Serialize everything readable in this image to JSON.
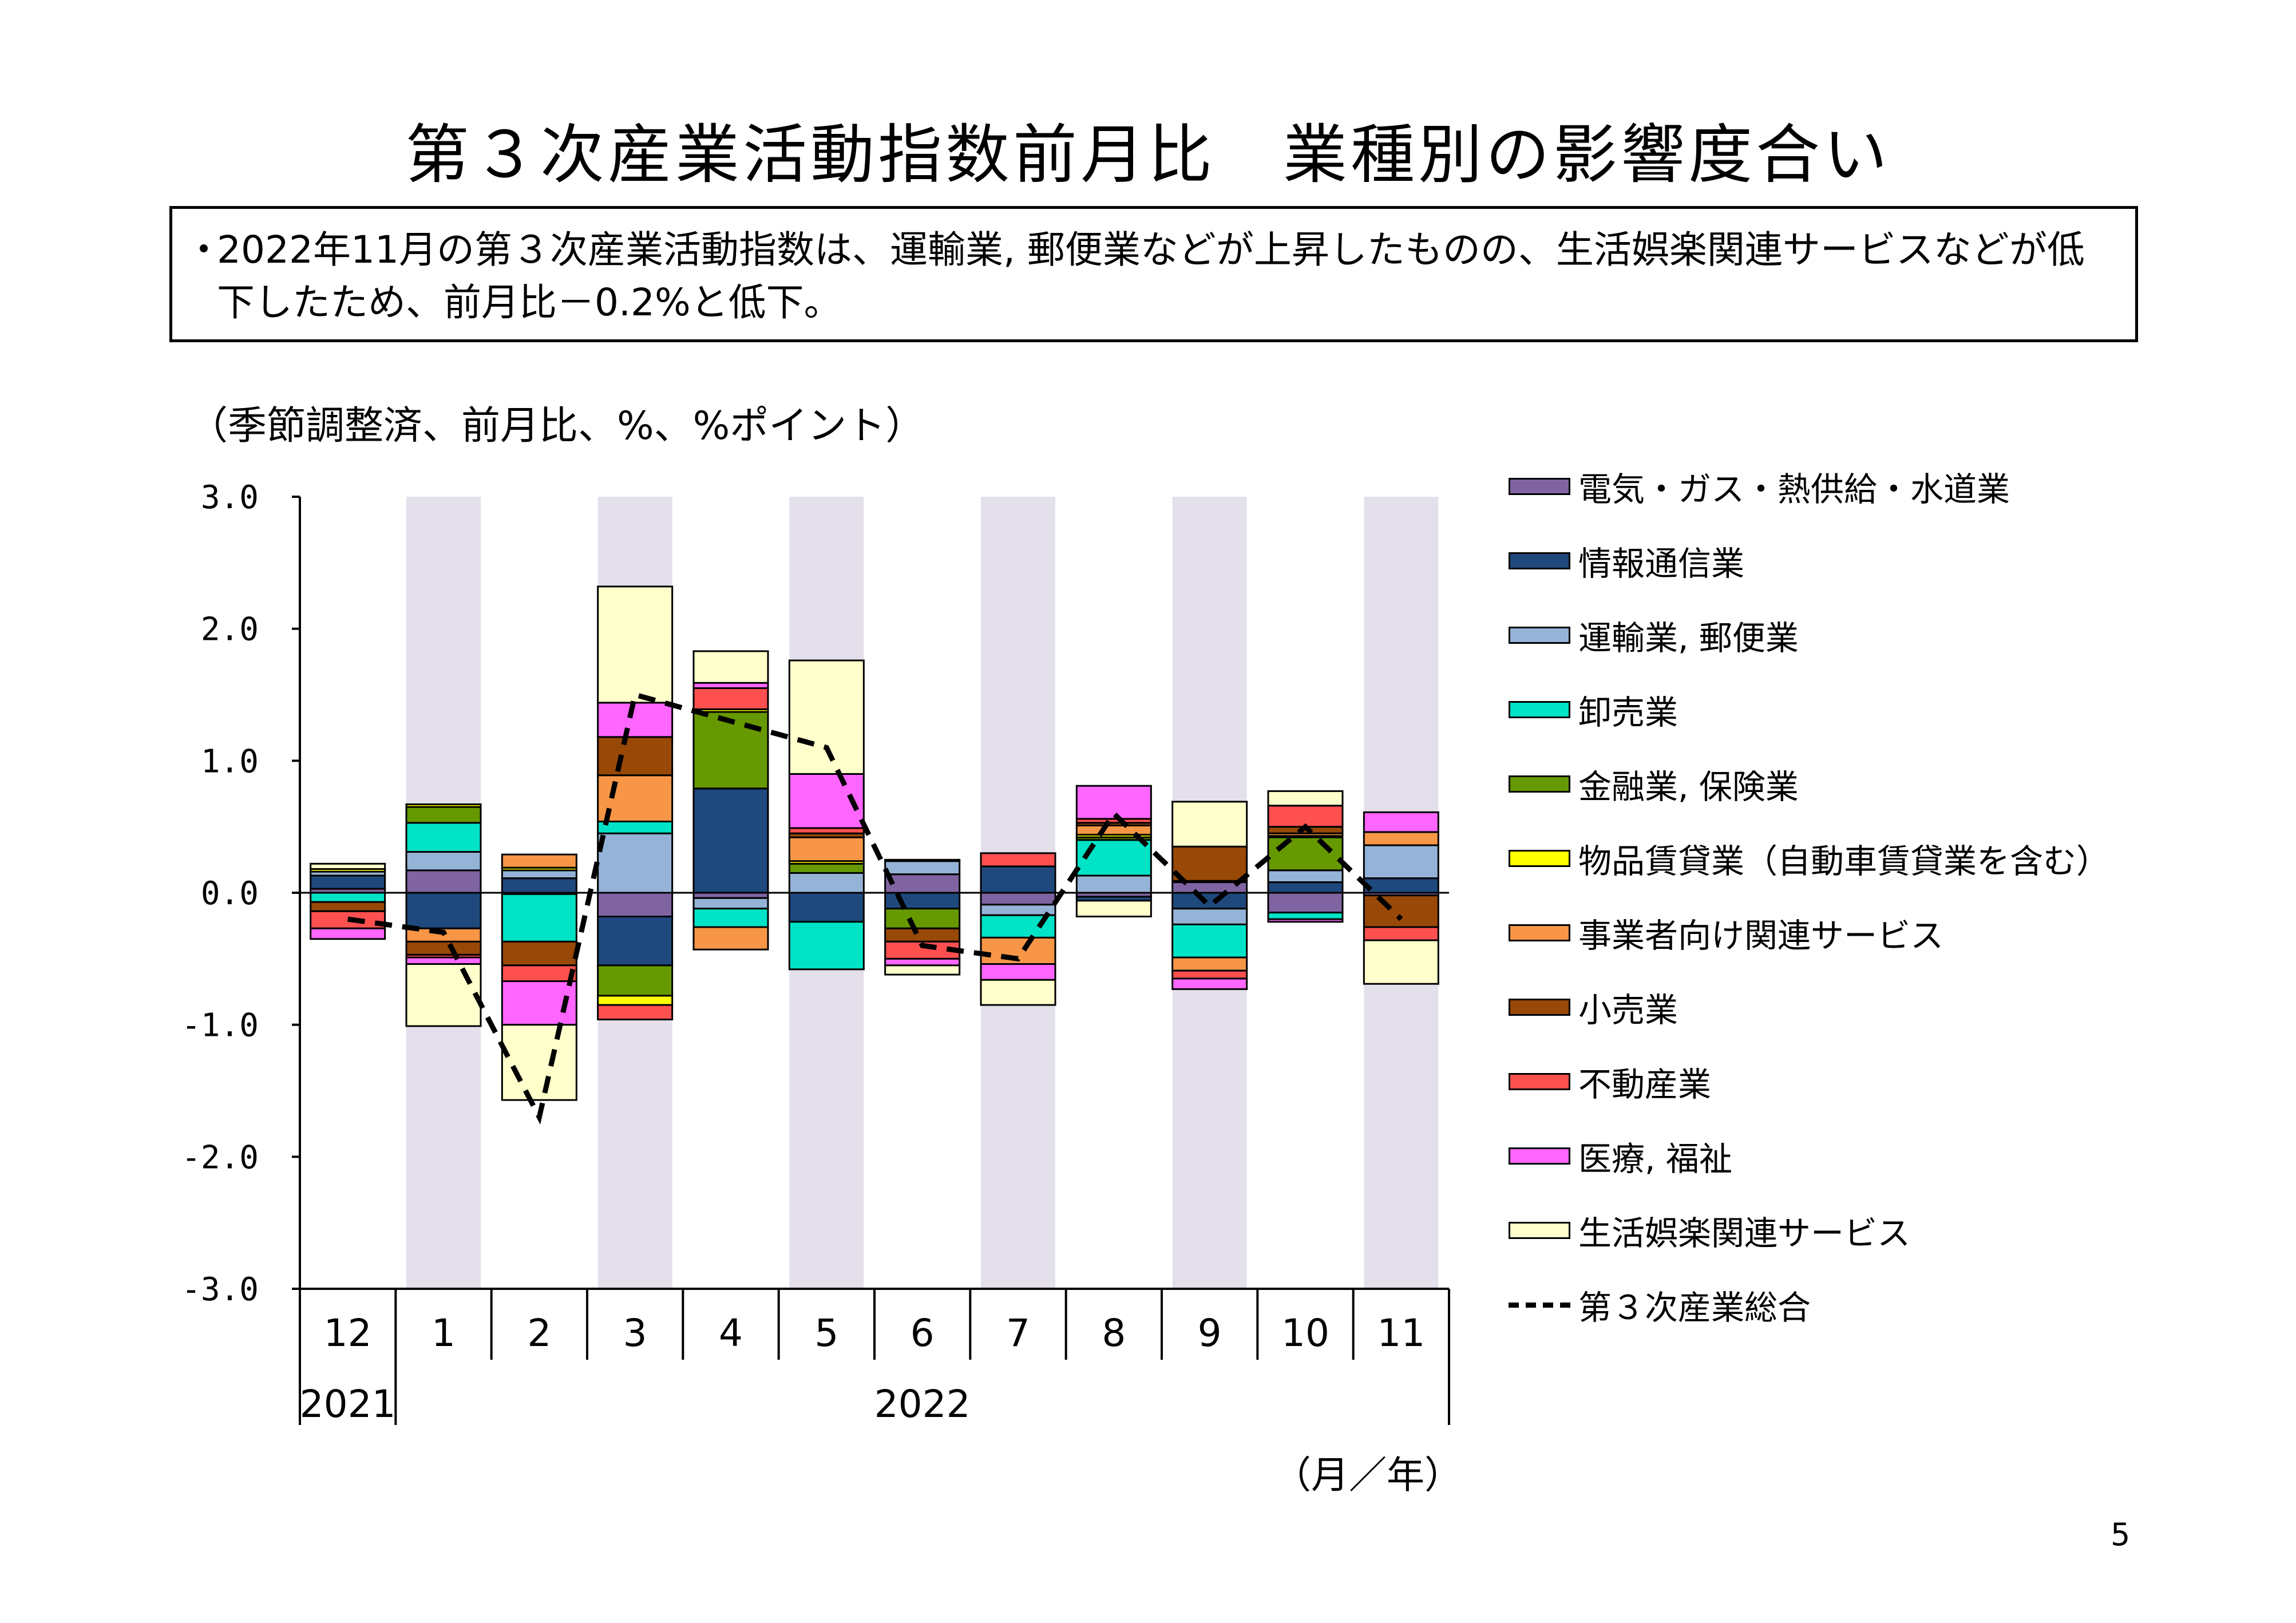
{
  "title": "第３次産業活動指数前月比　業種別の影響度合い",
  "note": {
    "bullet": "・",
    "text": "2022年11月の第３次産業活動指数は、運輸業, 郵便業などが上昇したものの、生活娯楽関連サービスなどが低下したため、前月比－0.2%と低下。"
  },
  "unit_label": "（季節調整済、前月比、%、%ポイント）",
  "x_unit_label": "（月／年）",
  "page_number": "5",
  "colors": {
    "shade": "#e3dfeb",
    "grid": "#000000"
  },
  "chart_data": {
    "type": "bar",
    "stacked": true,
    "ylim": [
      -3.0,
      3.0
    ],
    "yticks": [
      "3.0",
      "2.0",
      "1.0",
      "0.0",
      "-1.0",
      "-2.0",
      "-3.0"
    ],
    "categories": [
      "12",
      "1",
      "2",
      "3",
      "4",
      "5",
      "6",
      "7",
      "8",
      "9",
      "10",
      "11"
    ],
    "year_labels": [
      {
        "label": "2021",
        "from": 0,
        "to": 0
      },
      {
        "label": "2022",
        "from": 1,
        "to": 11
      }
    ],
    "shaded_categories": [
      1,
      3,
      5,
      7,
      9,
      11
    ],
    "series": [
      {
        "name": "電気・ガス・熱供給・水道業",
        "color": "#8064a2",
        "values": [
          0.03,
          0.17,
          -0.01,
          -0.18,
          -0.04,
          0.0,
          0.14,
          -0.09,
          -0.03,
          0.08,
          -0.15,
          -0.02
        ]
      },
      {
        "name": "情報通信業",
        "color": "#1f497d",
        "values": [
          0.1,
          -0.27,
          0.11,
          -0.37,
          0.79,
          -0.22,
          -0.12,
          0.2,
          -0.03,
          -0.12,
          0.08,
          0.11
        ]
      },
      {
        "name": "運輸業, 郵便業",
        "color": "#95b3d7",
        "values": [
          0.03,
          0.14,
          0.06,
          0.45,
          -0.08,
          0.15,
          0.1,
          -0.08,
          0.13,
          -0.12,
          0.09,
          0.25
        ]
      },
      {
        "name": "卸売業",
        "color": "#00e3c6",
        "values": [
          -0.07,
          0.22,
          -0.36,
          0.09,
          -0.14,
          -0.36,
          0.0,
          -0.17,
          0.27,
          -0.25,
          -0.05,
          0.0
        ]
      },
      {
        "name": "金融業, 保険業",
        "color": "#669900",
        "values": [
          0.0,
          0.12,
          0.0,
          -0.23,
          0.58,
          0.07,
          -0.15,
          0.0,
          0.02,
          0.0,
          0.25,
          0.0
        ]
      },
      {
        "name": "物品賃貸業（自動車賃貸業を含む）",
        "color": "#ffff00",
        "values": [
          0.02,
          0.02,
          0.02,
          -0.07,
          0.02,
          0.02,
          0.01,
          0.0,
          0.02,
          0.01,
          0.01,
          0.0
        ]
      },
      {
        "name": "事業者向け関連サービス",
        "color": "#f79646",
        "values": [
          0.0,
          -0.1,
          0.1,
          0.35,
          -0.17,
          0.18,
          0.0,
          -0.2,
          0.07,
          -0.1,
          0.02,
          0.1
        ]
      },
      {
        "name": "小売業",
        "color": "#984807",
        "values": [
          -0.07,
          -0.1,
          -0.18,
          0.29,
          0.0,
          0.03,
          -0.1,
          0.0,
          0.02,
          0.26,
          0.05,
          -0.24
        ]
      },
      {
        "name": "不動産業",
        "color": "#ff5050",
        "values": [
          -0.13,
          -0.02,
          -0.12,
          -0.11,
          0.16,
          0.04,
          -0.13,
          0.1,
          0.03,
          -0.06,
          0.16,
          -0.1
        ]
      },
      {
        "name": "医療, 福祉",
        "color": "#ff66ff",
        "values": [
          -0.08,
          -0.05,
          -0.33,
          0.26,
          0.04,
          0.41,
          -0.05,
          -0.12,
          0.25,
          -0.08,
          -0.02,
          0.15
        ]
      },
      {
        "name": "生活娯楽関連サービス",
        "color": "#ffffcc",
        "values": [
          0.04,
          -0.47,
          -0.57,
          0.88,
          0.24,
          0.86,
          -0.07,
          -0.19,
          -0.12,
          0.34,
          0.11,
          -0.33
        ]
      }
    ],
    "line": {
      "name": "第３次産業総合",
      "values": [
        -0.2,
        -0.3,
        -1.7,
        1.5,
        1.3,
        1.1,
        -0.4,
        -0.5,
        0.6,
        -0.1,
        0.5,
        -0.2
      ]
    }
  }
}
